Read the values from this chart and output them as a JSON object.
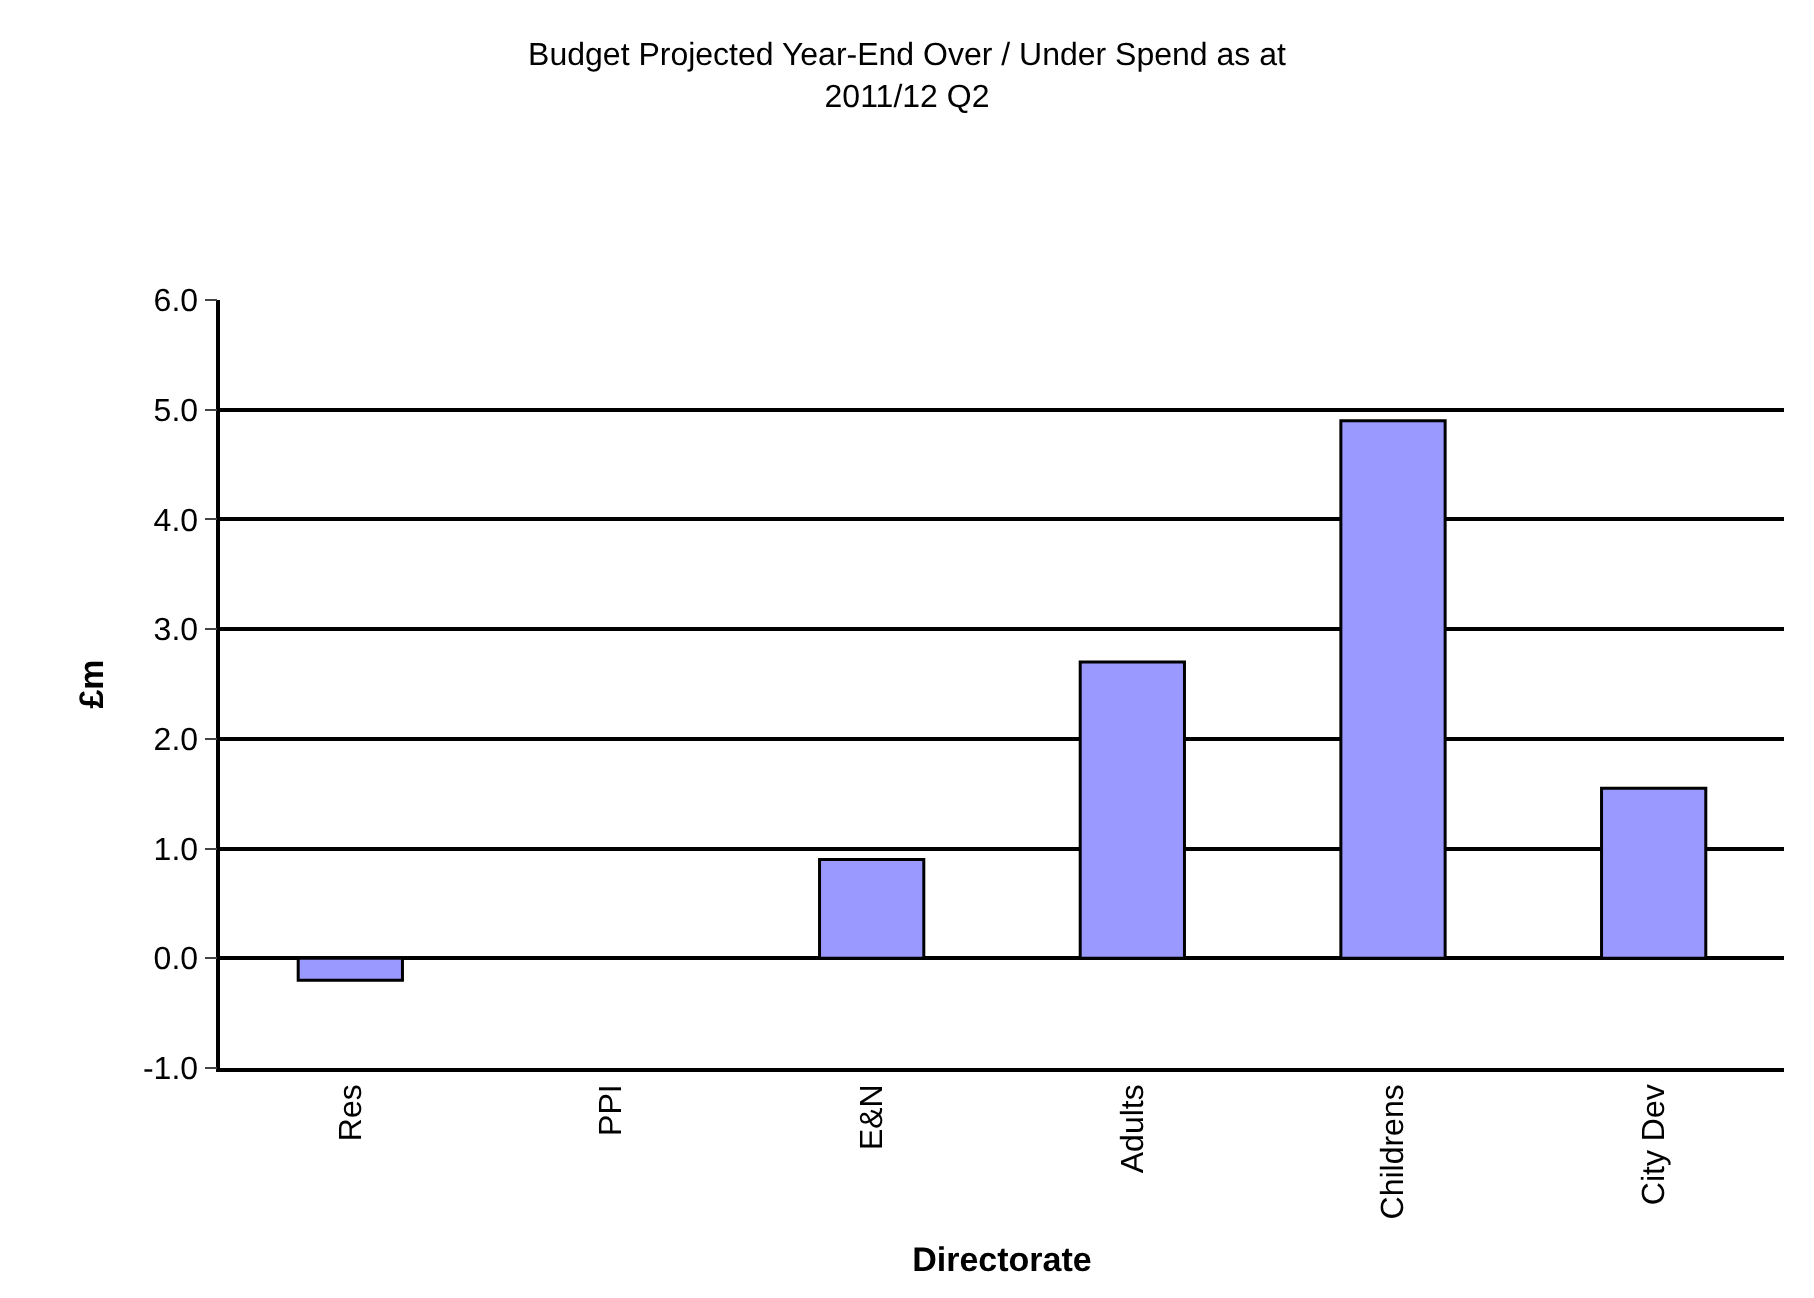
{
  "chart_data": {
    "type": "bar",
    "title": "Budget Projected Year-End Over / Under Spend as at 2011/12 Q2",
    "xlabel": "Directorate",
    "ylabel": "£m",
    "categories": [
      "Res",
      "PPI",
      "E&N",
      "Adults",
      "Childrens",
      "City Dev"
    ],
    "series": [
      {
        "color": "#9999ff",
        "values": [
          -0.2,
          null,
          0.9,
          2.7,
          4.9,
          1.55
        ]
      }
    ],
    "ylim": [
      -1,
      6
    ],
    "yticks": [
      {
        "value": -1,
        "label": "-1.0"
      },
      {
        "value": 0,
        "label": "0.0"
      },
      {
        "value": 1,
        "label": "1.0"
      },
      {
        "value": 2,
        "label": "2.0"
      },
      {
        "value": 3,
        "label": "3.0"
      },
      {
        "value": 4,
        "label": "4.0"
      },
      {
        "value": 5,
        "label": "5.0"
      },
      {
        "value": 6,
        "label": "6.0"
      }
    ],
    "grid": "y"
  }
}
